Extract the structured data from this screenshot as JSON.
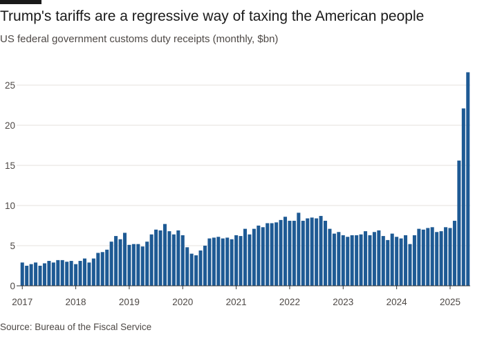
{
  "header": {
    "title": "Trump's tariffs are a regressive way of taxing the American people",
    "subtitle": "US federal government customs duty receipts (monthly, $bn)"
  },
  "footer": {
    "source": "Source: Bureau of the Fiscal Service"
  },
  "colors": {
    "bar": "#1e5a94",
    "gridline": "#e6e1dc",
    "baseline": "#333333",
    "top_rule": "#1a1a1a"
  },
  "chart_data": {
    "type": "bar",
    "title": "Trump's tariffs are a regressive way of taxing the American people",
    "subtitle": "US federal government customs duty receipts (monthly, $bn)",
    "xlabel": "",
    "ylabel": "",
    "ylim": [
      0,
      27
    ],
    "yticks": [
      0,
      5,
      10,
      15,
      20,
      25
    ],
    "xticks": [
      "2017",
      "2018",
      "2019",
      "2020",
      "2021",
      "2022",
      "2023",
      "2024",
      "2025"
    ],
    "x_start": "2017-01",
    "grid": true,
    "series": [
      {
        "values": [
          2.9,
          2.5,
          2.7,
          2.9,
          2.5,
          2.8,
          3.1,
          2.9,
          3.2,
          3.2,
          3.0,
          3.1,
          2.7,
          3.1,
          3.4,
          2.9,
          3.4,
          4.1,
          4.2,
          4.5,
          5.5,
          6.2,
          5.8,
          6.6,
          5.1,
          5.2,
          5.2,
          4.9,
          5.5,
          6.4,
          7.0,
          6.9,
          7.7,
          6.8,
          6.4,
          6.9,
          6.3,
          4.8,
          4.0,
          3.8,
          4.4,
          5.0,
          5.9,
          6.0,
          6.1,
          5.9,
          6.0,
          5.8,
          6.3,
          6.2,
          7.1,
          6.4,
          7.1,
          7.5,
          7.3,
          7.8,
          7.8,
          7.9,
          8.2,
          8.6,
          8.1,
          8.1,
          9.1,
          8.1,
          8.4,
          8.5,
          8.4,
          8.7,
          8.1,
          7.1,
          6.5,
          6.7,
          6.3,
          6.1,
          6.3,
          6.3,
          6.4,
          6.8,
          6.3,
          6.7,
          6.9,
          6.2,
          5.7,
          6.5,
          6.1,
          5.9,
          6.3,
          5.2,
          6.3,
          7.1,
          7.0,
          7.2,
          7.3,
          6.7,
          6.8,
          7.3,
          7.2,
          8.1,
          15.6,
          22.1,
          26.6
        ]
      }
    ]
  }
}
